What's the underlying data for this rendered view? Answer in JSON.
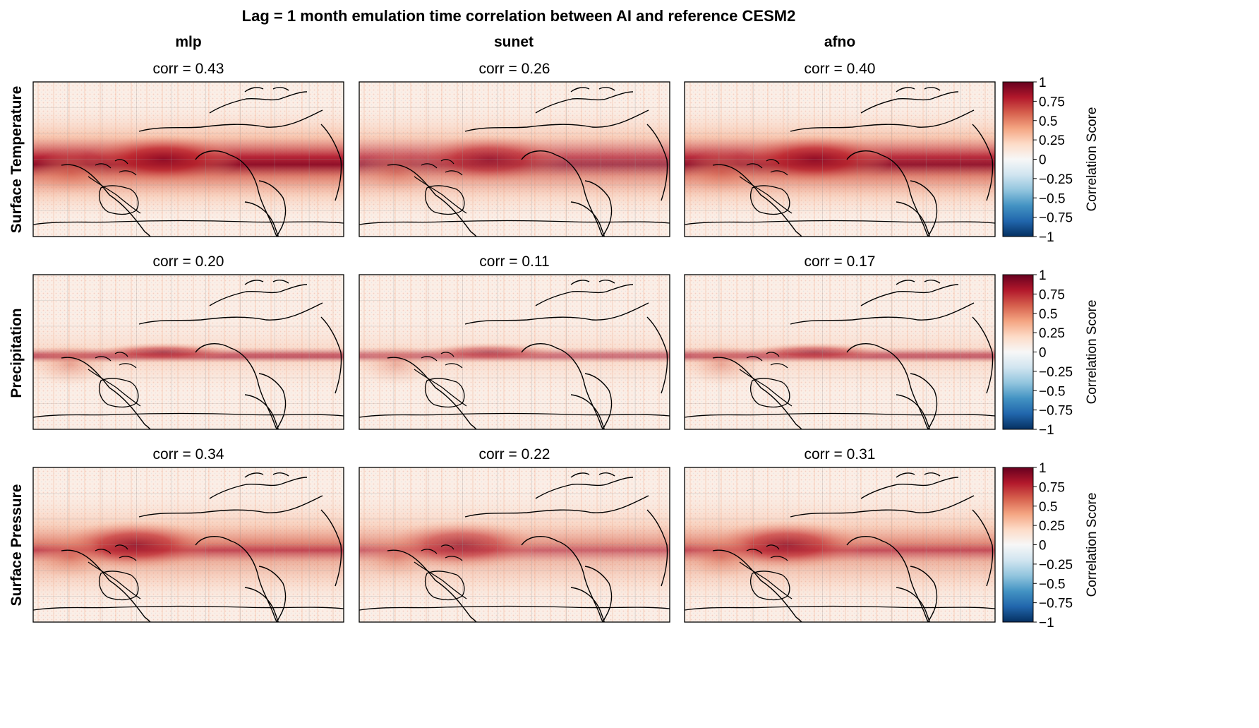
{
  "chart_data": {
    "type": "heatmap",
    "title": "Lag = 1 month emulation time correlation between AI and reference CESM2",
    "columns": [
      "mlp",
      "sunet",
      "afno"
    ],
    "rows": [
      "Surface Temperature",
      "Precipitation",
      "Surface Pressure"
    ],
    "panels": [
      [
        {
          "label": "corr = 0.43",
          "value": 0.43
        },
        {
          "label": "corr = 0.26",
          "value": 0.26
        },
        {
          "label": "corr = 0.40",
          "value": 0.4
        }
      ],
      [
        {
          "label": "corr = 0.20",
          "value": 0.2
        },
        {
          "label": "corr = 0.11",
          "value": 0.11
        },
        {
          "label": "corr = 0.17",
          "value": 0.17
        }
      ],
      [
        {
          "label": "corr = 0.34",
          "value": 0.34
        },
        {
          "label": "corr = 0.22",
          "value": 0.22
        },
        {
          "label": "corr = 0.31",
          "value": 0.31
        }
      ]
    ],
    "colorbar": {
      "label": "Correlation Score",
      "range": [
        -1,
        1
      ],
      "ticks": [
        1,
        0.75,
        0.5,
        0.25,
        0,
        -0.25,
        -0.5,
        -0.75,
        -1
      ],
      "tick_labels": [
        "1",
        "0.75",
        "0.5",
        "0.25",
        "0",
        "−0.25",
        "−0.5",
        "−0.75",
        "−1"
      ],
      "colormap": [
        "#053061",
        "#2166ac",
        "#4393c3",
        "#92c5de",
        "#d1e5f0",
        "#f7f7f7",
        "#fddbc7",
        "#f4a582",
        "#d6604d",
        "#b2182b",
        "#67001f"
      ]
    }
  }
}
